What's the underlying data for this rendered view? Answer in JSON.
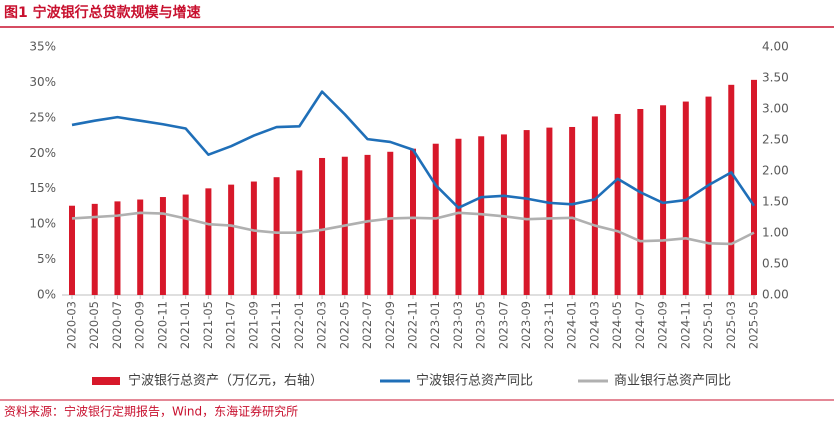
{
  "chart_data": {
    "type": "bar_line",
    "title": "图1  宁波银行总贷款规模与增速",
    "source": "资料来源：宁波银行定期报告，Wind，东海证券研究所",
    "categories": [
      "2020-03",
      "2020-05",
      "2020-07",
      "2020-09",
      "2020-11",
      "2021-01",
      "2021-05",
      "2021-07",
      "2021-09",
      "2021-11",
      "2022-01",
      "2022-03",
      "2022-05",
      "2022-07",
      "2022-09",
      "2022-11",
      "2023-01",
      "2023-03",
      "2023-05",
      "2023-07",
      "2023-09",
      "2023-11",
      "2024-01",
      "2024-03",
      "2024-05",
      "2024-07",
      "2024-09",
      "2024-11",
      "2025-01",
      "2025-03",
      "2025-05"
    ],
    "series": [
      {
        "name": "宁波银行总资产（万亿元，右轴）",
        "type": "bar",
        "axis": "y2",
        "color": "#d7182a",
        "values": [
          1.44,
          1.47,
          1.51,
          1.54,
          1.58,
          1.62,
          1.72,
          1.78,
          1.83,
          1.9,
          2.01,
          2.21,
          2.23,
          2.26,
          2.31,
          2.36,
          2.44,
          2.52,
          2.56,
          2.59,
          2.66,
          2.7,
          2.71,
          2.88,
          2.92,
          3.0,
          3.06,
          3.12,
          3.2,
          3.39,
          3.47
        ]
      },
      {
        "name": "宁波银行总资产同比",
        "type": "line",
        "color": "#1f6fb8",
        "values": [
          24.0,
          24.6,
          25.1,
          24.6,
          24.1,
          23.5,
          19.8,
          21.0,
          22.5,
          23.7,
          23.8,
          28.7,
          25.5,
          22.0,
          21.6,
          20.5,
          15.5,
          12.3,
          13.8,
          14.0,
          13.6,
          13.0,
          12.8,
          13.5,
          16.4,
          14.5,
          13.0,
          13.4,
          15.5,
          17.3,
          12.6
        ]
      },
      {
        "name": "商业银行总资产同比",
        "type": "line",
        "color": "#b0b0b0",
        "values": [
          10.8,
          11.0,
          11.2,
          11.6,
          11.5,
          10.8,
          10.0,
          9.8,
          9.1,
          8.8,
          8.8,
          9.2,
          9.8,
          10.4,
          10.8,
          10.9,
          10.8,
          11.6,
          11.4,
          11.1,
          10.7,
          10.8,
          10.9,
          9.8,
          9.0,
          7.6,
          7.7,
          8.0,
          7.3,
          7.2,
          8.8
        ]
      }
    ],
    "ylim": [
      0,
      35
    ],
    "yticks": [
      {
        "value": 0,
        "label": "0%"
      },
      {
        "value": 5,
        "label": "5%"
      },
      {
        "value": 10,
        "label": "10%"
      },
      {
        "value": 15,
        "label": "15%"
      },
      {
        "value": 20,
        "label": "20%"
      },
      {
        "value": 25,
        "label": "25%"
      },
      {
        "value": 30,
        "label": "30%"
      },
      {
        "value": 35,
        "label": "35%"
      }
    ],
    "y2lim": [
      0,
      4
    ],
    "y2ticks": [
      {
        "value": 0,
        "label": "0.00"
      },
      {
        "value": 0.5,
        "label": "0.50"
      },
      {
        "value": 1,
        "label": "1.00"
      },
      {
        "value": 1.5,
        "label": "1.50"
      },
      {
        "value": 2,
        "label": "2.00"
      },
      {
        "value": 2.5,
        "label": "2.50"
      },
      {
        "value": 3,
        "label": "3.00"
      },
      {
        "value": 3.5,
        "label": "3.50"
      },
      {
        "value": 4,
        "label": "4.00"
      }
    ],
    "legend": "bottom"
  }
}
